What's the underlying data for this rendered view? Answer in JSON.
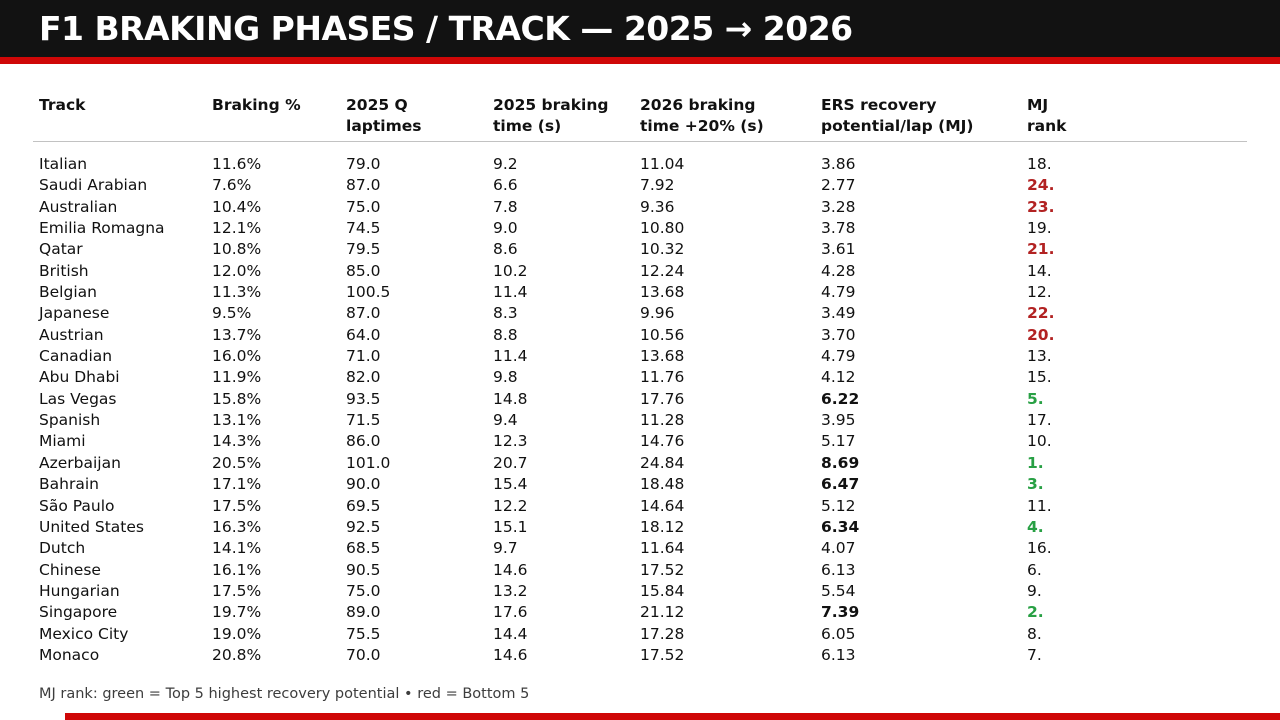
{
  "title": "F1 BRAKING PHASES / TRACK — 2025 → 2026",
  "colors": {
    "header_bg": "#121212",
    "accent_red": "#cf0707",
    "rank_red": "#b22222",
    "rank_green": "#28a044"
  },
  "table": {
    "columns": [
      {
        "label": "Track"
      },
      {
        "label": "Braking %"
      },
      {
        "label": "2025 Q\nlaptimes"
      },
      {
        "label": "2025 braking\ntime (s)"
      },
      {
        "label": "2026 braking\ntime +20% (s)"
      },
      {
        "label": "ERS recovery\npotential/lap (MJ)"
      },
      {
        "label": "MJ\nrank"
      }
    ],
    "rows": [
      {
        "track": "Italian",
        "braking_pct": "11.6%",
        "q_laptime": "79.0",
        "brake_2025": "9.2",
        "brake_2026": "11.04",
        "ers_mj": "3.86",
        "ers_bold": false,
        "rank": "18.",
        "rank_style": "normal"
      },
      {
        "track": "Saudi Arabian",
        "braking_pct": "7.6%",
        "q_laptime": "87.0",
        "brake_2025": "6.6",
        "brake_2026": "7.92",
        "ers_mj": "2.77",
        "ers_bold": false,
        "rank": "24.",
        "rank_style": "red"
      },
      {
        "track": "Australian",
        "braking_pct": "10.4%",
        "q_laptime": "75.0",
        "brake_2025": "7.8",
        "brake_2026": "9.36",
        "ers_mj": "3.28",
        "ers_bold": false,
        "rank": "23.",
        "rank_style": "red"
      },
      {
        "track": "Emilia Romagna",
        "braking_pct": "12.1%",
        "q_laptime": "74.5",
        "brake_2025": "9.0",
        "brake_2026": "10.80",
        "ers_mj": "3.78",
        "ers_bold": false,
        "rank": "19.",
        "rank_style": "normal"
      },
      {
        "track": "Qatar",
        "braking_pct": "10.8%",
        "q_laptime": "79.5",
        "brake_2025": "8.6",
        "brake_2026": "10.32",
        "ers_mj": "3.61",
        "ers_bold": false,
        "rank": "21.",
        "rank_style": "red"
      },
      {
        "track": "British",
        "braking_pct": "12.0%",
        "q_laptime": "85.0",
        "brake_2025": "10.2",
        "brake_2026": "12.24",
        "ers_mj": "4.28",
        "ers_bold": false,
        "rank": "14.",
        "rank_style": "normal"
      },
      {
        "track": "Belgian",
        "braking_pct": "11.3%",
        "q_laptime": "100.5",
        "brake_2025": "11.4",
        "brake_2026": "13.68",
        "ers_mj": "4.79",
        "ers_bold": false,
        "rank": "12.",
        "rank_style": "normal"
      },
      {
        "track": "Japanese",
        "braking_pct": "9.5%",
        "q_laptime": "87.0",
        "brake_2025": "8.3",
        "brake_2026": "9.96",
        "ers_mj": "3.49",
        "ers_bold": false,
        "rank": "22.",
        "rank_style": "red"
      },
      {
        "track": "Austrian",
        "braking_pct": "13.7%",
        "q_laptime": "64.0",
        "brake_2025": "8.8",
        "brake_2026": "10.56",
        "ers_mj": "3.70",
        "ers_bold": false,
        "rank": "20.",
        "rank_style": "red"
      },
      {
        "track": "Canadian",
        "braking_pct": "16.0%",
        "q_laptime": "71.0",
        "brake_2025": "11.4",
        "brake_2026": "13.68",
        "ers_mj": "4.79",
        "ers_bold": false,
        "rank": "13.",
        "rank_style": "normal"
      },
      {
        "track": "Abu Dhabi",
        "braking_pct": "11.9%",
        "q_laptime": "82.0",
        "brake_2025": "9.8",
        "brake_2026": "11.76",
        "ers_mj": "4.12",
        "ers_bold": false,
        "rank": "15.",
        "rank_style": "normal"
      },
      {
        "track": "Las Vegas",
        "braking_pct": "15.8%",
        "q_laptime": "93.5",
        "brake_2025": "14.8",
        "brake_2026": "17.76",
        "ers_mj": "6.22",
        "ers_bold": true,
        "rank": "5.",
        "rank_style": "green"
      },
      {
        "track": "Spanish",
        "braking_pct": "13.1%",
        "q_laptime": "71.5",
        "brake_2025": "9.4",
        "brake_2026": "11.28",
        "ers_mj": "3.95",
        "ers_bold": false,
        "rank": "17.",
        "rank_style": "normal"
      },
      {
        "track": "Miami",
        "braking_pct": "14.3%",
        "q_laptime": "86.0",
        "brake_2025": "12.3",
        "brake_2026": "14.76",
        "ers_mj": "5.17",
        "ers_bold": false,
        "rank": "10.",
        "rank_style": "normal"
      },
      {
        "track": "Azerbaijan",
        "braking_pct": "20.5%",
        "q_laptime": "101.0",
        "brake_2025": "20.7",
        "brake_2026": "24.84",
        "ers_mj": "8.69",
        "ers_bold": true,
        "rank": "1.",
        "rank_style": "green"
      },
      {
        "track": "Bahrain",
        "braking_pct": "17.1%",
        "q_laptime": "90.0",
        "brake_2025": "15.4",
        "brake_2026": "18.48",
        "ers_mj": "6.47",
        "ers_bold": true,
        "rank": "3.",
        "rank_style": "green"
      },
      {
        "track": "São Paulo",
        "braking_pct": "17.5%",
        "q_laptime": "69.5",
        "brake_2025": "12.2",
        "brake_2026": "14.64",
        "ers_mj": "5.12",
        "ers_bold": false,
        "rank": "11.",
        "rank_style": "normal"
      },
      {
        "track": "United States",
        "braking_pct": "16.3%",
        "q_laptime": "92.5",
        "brake_2025": "15.1",
        "brake_2026": "18.12",
        "ers_mj": "6.34",
        "ers_bold": true,
        "rank": "4.",
        "rank_style": "green"
      },
      {
        "track": "Dutch",
        "braking_pct": "14.1%",
        "q_laptime": "68.5",
        "brake_2025": "9.7",
        "brake_2026": "11.64",
        "ers_mj": "4.07",
        "ers_bold": false,
        "rank": "16.",
        "rank_style": "normal"
      },
      {
        "track": "Chinese",
        "braking_pct": "16.1%",
        "q_laptime": "90.5",
        "brake_2025": "14.6",
        "brake_2026": "17.52",
        "ers_mj": "6.13",
        "ers_bold": false,
        "rank": "6.",
        "rank_style": "normal"
      },
      {
        "track": "Hungarian",
        "braking_pct": "17.5%",
        "q_laptime": "75.0",
        "brake_2025": "13.2",
        "brake_2026": "15.84",
        "ers_mj": "5.54",
        "ers_bold": false,
        "rank": "9.",
        "rank_style": "normal"
      },
      {
        "track": "Singapore",
        "braking_pct": "19.7%",
        "q_laptime": "89.0",
        "brake_2025": "17.6",
        "brake_2026": "21.12",
        "ers_mj": "7.39",
        "ers_bold": true,
        "rank": "2.",
        "rank_style": "green"
      },
      {
        "track": "Mexico City",
        "braking_pct": "19.0%",
        "q_laptime": "75.5",
        "brake_2025": "14.4",
        "brake_2026": "17.28",
        "ers_mj": "6.05",
        "ers_bold": false,
        "rank": "8.",
        "rank_style": "normal"
      },
      {
        "track": "Monaco",
        "braking_pct": "20.8%",
        "q_laptime": "70.0",
        "brake_2025": "14.6",
        "brake_2026": "17.52",
        "ers_mj": "6.13",
        "ers_bold": false,
        "rank": "7.",
        "rank_style": "normal"
      }
    ]
  },
  "footnote": "MJ rank: green = Top 5 highest recovery potential • red = Bottom 5"
}
